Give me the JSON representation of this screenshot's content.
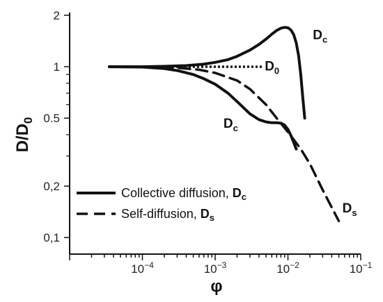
{
  "chart_data": {
    "type": "line",
    "xlabel": "φ",
    "ylabel": "D/D",
    "ylabel_sub": "0",
    "xscale": "log",
    "yscale": "log",
    "xlim": [
      1e-05,
      0.1
    ],
    "ylim": [
      0.08,
      2.0
    ],
    "x_ticks": [
      {
        "value": 0.0001,
        "base": "10",
        "exp": "−4"
      },
      {
        "value": 0.001,
        "base": "10",
        "exp": "−3"
      },
      {
        "value": 0.01,
        "base": "10",
        "exp": "−2"
      },
      {
        "value": 0.1,
        "base": "10",
        "exp": "−1"
      }
    ],
    "y_ticks": [
      {
        "value": 2,
        "label": "2"
      },
      {
        "value": 1,
        "label": "1"
      },
      {
        "value": 0.5,
        "label": "0.5"
      },
      {
        "value": 0.2,
        "label": "0,2"
      },
      {
        "value": 0.1,
        "label": "0,1"
      }
    ],
    "grid": false,
    "series": [
      {
        "name": "Collective diffusion, Dc (upper)",
        "style": "solid",
        "x": [
          3.5e-05,
          0.0001,
          0.0002,
          0.0004,
          0.0007,
          0.001,
          0.0015,
          0.002,
          0.003,
          0.004,
          0.005,
          0.006,
          0.007,
          0.008,
          0.009,
          0.01,
          0.011,
          0.012,
          0.013,
          0.014,
          0.015,
          0.016,
          0.017
        ],
        "y": [
          1.0,
          1.0,
          1.005,
          1.015,
          1.035,
          1.06,
          1.1,
          1.15,
          1.25,
          1.35,
          1.45,
          1.55,
          1.63,
          1.68,
          1.7,
          1.69,
          1.64,
          1.54,
          1.38,
          1.16,
          0.9,
          0.66,
          0.5
        ]
      },
      {
        "name": "Collective diffusion, Dc (lower)",
        "style": "solid",
        "x": [
          3.5e-05,
          0.0001,
          0.0002,
          0.0003,
          0.0005,
          0.0007,
          0.001,
          0.0015,
          0.002,
          0.003,
          0.004,
          0.005,
          0.006,
          0.007,
          0.008,
          0.009,
          0.01,
          0.011,
          0.012,
          0.013
        ],
        "y": [
          1.0,
          0.995,
          0.975,
          0.95,
          0.9,
          0.85,
          0.79,
          0.7,
          0.625,
          0.53,
          0.49,
          0.475,
          0.47,
          0.47,
          0.467,
          0.455,
          0.43,
          0.395,
          0.36,
          0.33
        ]
      },
      {
        "name": "Self-diffusion, Ds",
        "style": "dashed",
        "x": [
          3.5e-05,
          0.0001,
          0.0003,
          0.0006,
          0.001,
          0.002,
          0.003,
          0.005,
          0.007,
          0.01,
          0.015,
          0.02,
          0.03,
          0.04,
          0.05
        ],
        "y": [
          1.0,
          0.995,
          0.985,
          0.96,
          0.92,
          0.83,
          0.74,
          0.6,
          0.5,
          0.415,
          0.33,
          0.27,
          0.19,
          0.15,
          0.125
        ]
      },
      {
        "name": "D0",
        "style": "dotted",
        "x": [
          3.5e-05,
          0.0045
        ],
        "y": [
          1.0,
          1.0
        ]
      }
    ],
    "annotations": [
      {
        "text": "D",
        "sub": "c",
        "x": 0.022,
        "y": 1.45
      },
      {
        "text": "D",
        "sub": "0",
        "x": 0.0048,
        "y": 0.95
      },
      {
        "text": "D",
        "sub": "c",
        "x": 0.0013,
        "y": 0.44
      },
      {
        "text": "D",
        "sub": "s",
        "x": 0.056,
        "y": 0.14
      }
    ],
    "legend": {
      "placement": "bottom-left",
      "entries": [
        {
          "style": "solid",
          "text": "Collective diffusion, ",
          "bold": "D",
          "sub": "c"
        },
        {
          "style": "dashed",
          "text": "Self-diffusion, ",
          "bold": "D",
          "sub": "s"
        }
      ]
    }
  }
}
